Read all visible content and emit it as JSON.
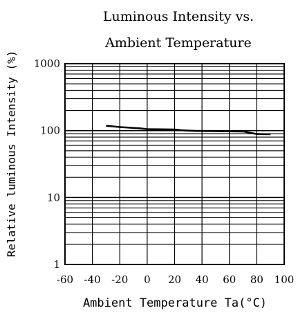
{
  "chart_data": {
    "type": "line",
    "title_lines": [
      "Luminous Intensity vs.",
      "Ambient Temperature"
    ],
    "xlabel": "Ambient Temperature Ta(°C)",
    "ylabel": "Relative luminous Intensity (%)",
    "x_ticks": [
      -60,
      -40,
      -20,
      0,
      20,
      40,
      60,
      80,
      100
    ],
    "y_ticks": [
      1,
      10,
      100,
      1000
    ],
    "xlim": [
      -60,
      100
    ],
    "ylim": [
      1,
      1000
    ],
    "y_scale": "log",
    "grid": true,
    "series": [
      {
        "x": [
          -30,
          -20,
          -5,
          0,
          20,
          25,
          35,
          70,
          80,
          90
        ],
        "y": [
          118,
          113,
          108,
          105,
          104,
          101,
          99,
          97,
          89,
          88
        ]
      }
    ]
  }
}
